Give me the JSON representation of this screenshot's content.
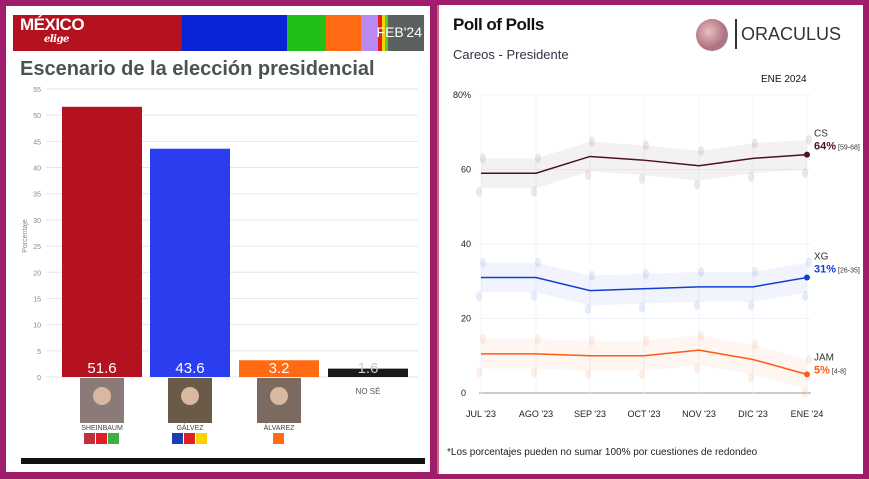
{
  "left": {
    "brand": "MÉXICO",
    "brand_sub": "elige",
    "date": "FEB'24",
    "header_colors": [
      "#b5121f",
      "#0a23d6",
      "#22c016",
      "#ff6a12",
      "#b88af0",
      "#e01f26",
      "#f7d300",
      "#4fcf2a",
      "#5a605e"
    ],
    "title": "Escenario de la elección presidencial"
  },
  "right": {
    "title": "Poll of Polls",
    "subtitle": "Careos - Presidente",
    "brand": "ORACULUS",
    "date_label": "ENE 2024",
    "note": "*Los porcentajes pueden no sumar 100% por cuestiones de redondeo"
  },
  "chart_data": [
    {
      "type": "bar",
      "ylabel": "Porcentaje",
      "ylim": [
        0,
        55
      ],
      "yticks": [
        0,
        5,
        10,
        15,
        20,
        25,
        30,
        35,
        40,
        45,
        50,
        55
      ],
      "categories": [
        "SHEINBAUM",
        "GÁLVEZ",
        "ÁLVAREZ",
        "NO SÉ"
      ],
      "values": [
        51.6,
        43.6,
        3.2,
        1.6
      ],
      "colors": [
        "#b5121f",
        "#2a3ef0",
        "#ff6a12",
        "#1a1a1a"
      ],
      "grid": true
    },
    {
      "type": "line",
      "ylim": [
        0,
        80
      ],
      "yticks": [
        "0",
        "20",
        "40",
        "60",
        "80%"
      ],
      "categories": [
        "JUL '23",
        "AGO '23",
        "SEP '23",
        "OCT '23",
        "NOV '23",
        "DIC '23",
        "ENE '24"
      ],
      "series": [
        {
          "name": "CS",
          "values": [
            59,
            59,
            63.5,
            62.5,
            61,
            63,
            64
          ],
          "color": "#4a0f2a",
          "last_label": "64",
          "range": "[59-68]"
        },
        {
          "name": "XG",
          "values": [
            31,
            31,
            27.5,
            28,
            28.5,
            28.5,
            31
          ],
          "color": "#1140d0",
          "last_label": "31",
          "range": "[26-35]"
        },
        {
          "name": "JAM",
          "values": [
            10.5,
            10.5,
            10,
            10,
            11.5,
            9,
            5
          ],
          "color": "#ff5a14",
          "last_label": "5",
          "range": "[4-8]"
        }
      ],
      "grid": true
    }
  ]
}
